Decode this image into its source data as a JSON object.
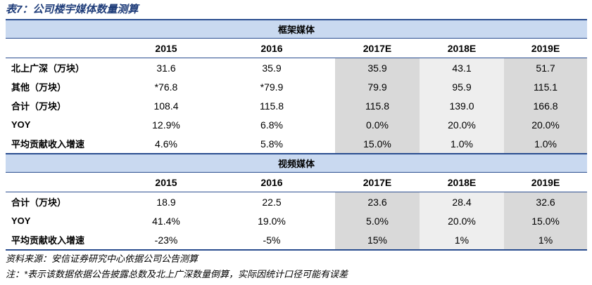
{
  "title": "表7：公司楼宇媒体数量测算",
  "sections": [
    {
      "name": "框架媒体",
      "years": [
        "2015",
        "2016",
        "2017E",
        "2018E",
        "2019E"
      ],
      "rows": [
        {
          "label": "北上广深（万块）",
          "values": [
            "31.6",
            "35.9",
            "35.9",
            "43.1",
            "51.7"
          ]
        },
        {
          "label": "其他（万块）",
          "values": [
            "*76.8",
            "*79.9",
            "79.9",
            "95.9",
            "115.1"
          ]
        },
        {
          "label": "合计（万块）",
          "values": [
            "108.4",
            "115.8",
            "115.8",
            "139.0",
            "166.8"
          ]
        },
        {
          "label": "YOY",
          "values": [
            "12.9%",
            "6.8%",
            "0.0%",
            "20.0%",
            "20.0%"
          ]
        },
        {
          "label": "平均贡献收入增速",
          "values": [
            "4.6%",
            "5.8%",
            "15.0%",
            "1.0%",
            "1.0%"
          ]
        }
      ]
    },
    {
      "name": "视频媒体",
      "years": [
        "2015",
        "2016",
        "2017E",
        "2018E",
        "2019E"
      ],
      "rows": [
        {
          "label": "合计（万块）",
          "values": [
            "18.9",
            "22.5",
            "23.6",
            "28.4",
            "32.6"
          ]
        },
        {
          "label": "YOY",
          "values": [
            "41.4%",
            "19.0%",
            "5.0%",
            "20.0%",
            "15.0%"
          ]
        },
        {
          "label": "平均贡献收入增速",
          "values": [
            "-23%",
            "-5%",
            "15%",
            "1%",
            "1%"
          ]
        }
      ]
    }
  ],
  "source": "资料来源：安信证券研究中心依据公司公告测算",
  "footnote": "注：*表示该数据依据公告披露总数及北上广深数量倒算，实际因统计口径可能有误差"
}
